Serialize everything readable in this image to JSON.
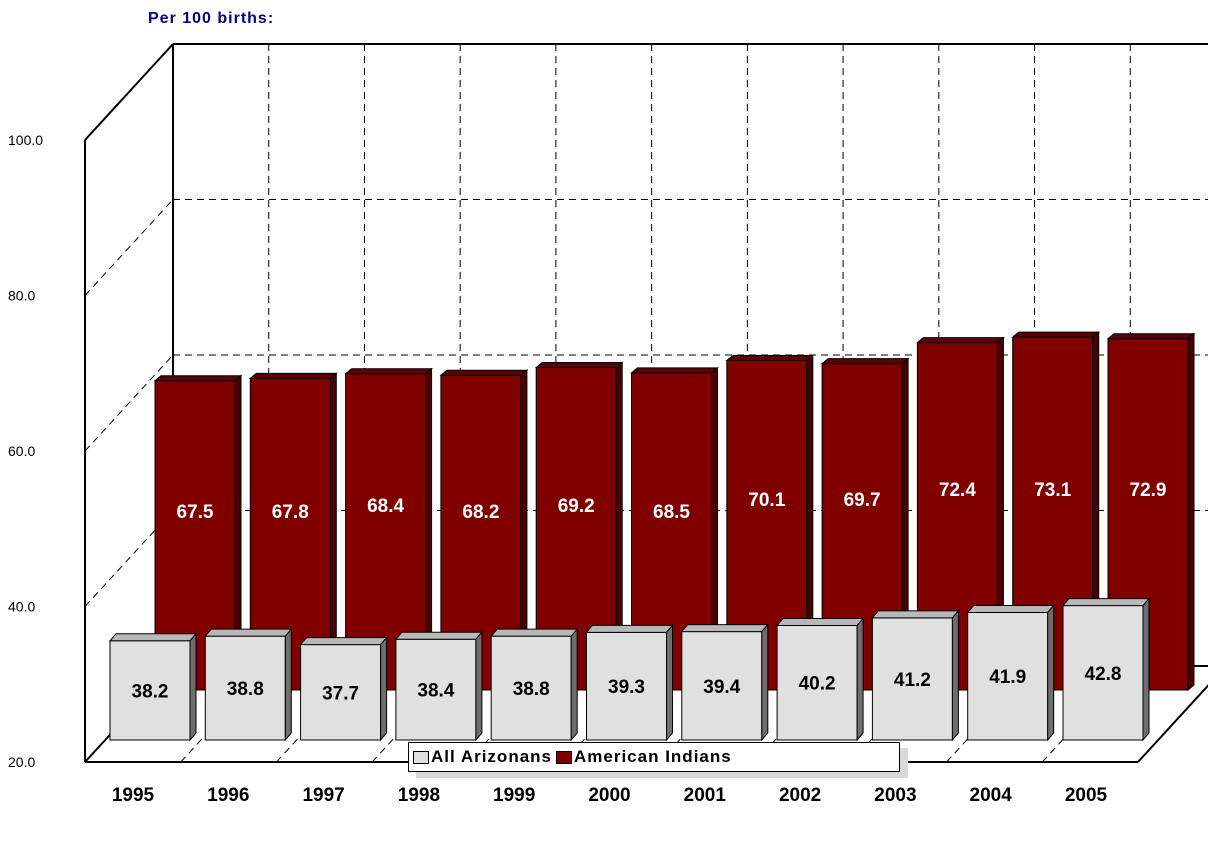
{
  "header": {
    "title": "Per 100  births:"
  },
  "legend": {
    "az_label": "All Arizonans",
    "ai_label": "American Indians"
  },
  "colors": {
    "az_front": "#e0e0e0",
    "az_side": "#6e6e6e",
    "az_top": "#b8b8b8",
    "ai_front": "#800000",
    "ai_side": "#4a0000",
    "ai_top": "#5c0000"
  },
  "chart_data": {
    "type": "bar",
    "is_3d": true,
    "categories": [
      "1995",
      "1996",
      "1997",
      "1998",
      "1999",
      "2000",
      "2001",
      "2002",
      "2003",
      "2004",
      "2005"
    ],
    "series": [
      {
        "name": "All Arizonans",
        "values": [
          38.2,
          38.8,
          37.7,
          38.4,
          38.8,
          39.3,
          39.4,
          40.2,
          41.2,
          41.9,
          42.8
        ]
      },
      {
        "name": "American Indians",
        "values": [
          67.5,
          67.8,
          68.4,
          68.2,
          69.2,
          68.5,
          70.1,
          69.7,
          72.4,
          73.1,
          72.9
        ]
      }
    ],
    "yticks": [
      "20.0",
      "40.0",
      "60.0",
      "80.0",
      "100.0"
    ],
    "ylim": [
      20,
      100
    ],
    "grid": true,
    "legend_position": "bottom"
  }
}
